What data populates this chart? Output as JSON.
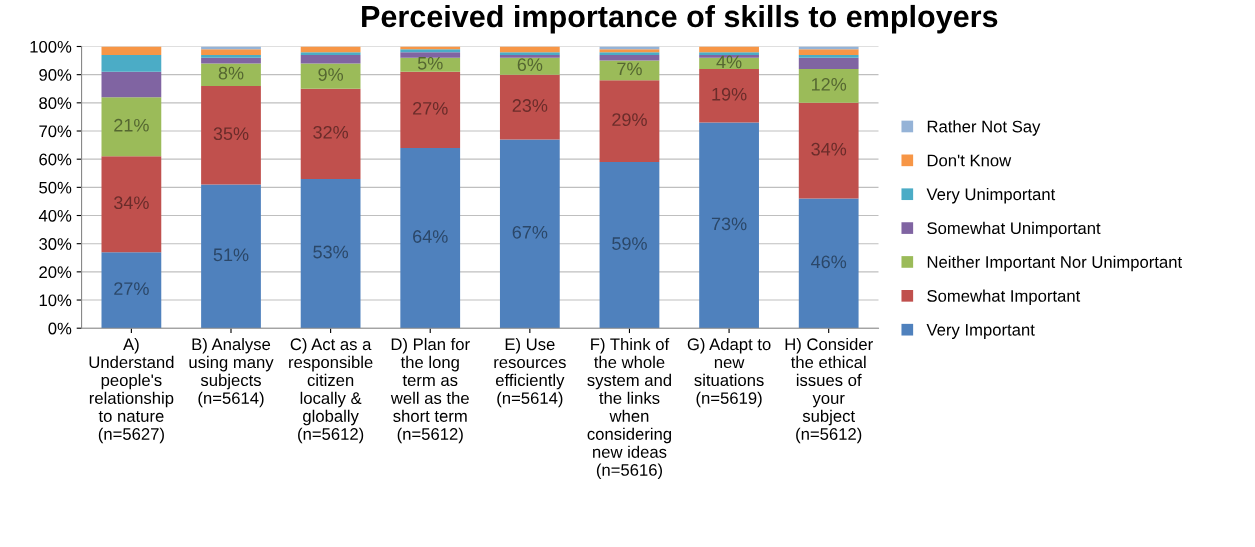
{
  "chart_data": {
    "type": "bar",
    "stacked": true,
    "title": "Perceived importance of skills to employers",
    "categories": [
      "A)\nUnderstand\npeople's\nrelationship\nto nature\n(n=5627)",
      "B) Analyse\nusing many\nsubjects\n(n=5614)",
      "C) Act as a\nresponsible\ncitizen\nlocally &\nglobally\n(n=5612)",
      "D) Plan for\nthe long\nterm as\nwell as the\nshort term\n(n=5612)",
      "E) Use\nresources\nefficiently\n(n=5614)",
      "F) Think of\nthe whole\nsystem and\nthe links\nwhen\nconsidering\nnew ideas\n(n=5616)",
      "G) Adapt to\nnew\nsituations\n(n=5619)",
      "H) Consider\nthe ethical\nissues of\nyour\nsubject\n(n=5612)"
    ],
    "series": [
      {
        "name": "Very Important",
        "color": "#4f81bd",
        "values": [
          27,
          51,
          53,
          64,
          67,
          59,
          73,
          46
        ],
        "value_labels": [
          "27%",
          "51%",
          "53%",
          "64%",
          "67%",
          "59%",
          "73%",
          "46%"
        ]
      },
      {
        "name": "Somewhat Important",
        "color": "#c0504d",
        "values": [
          34,
          35,
          32,
          27,
          23,
          29,
          19,
          34
        ],
        "value_labels": [
          "34%",
          "35%",
          "32%",
          "27%",
          "23%",
          "29%",
          "19%",
          "34%"
        ]
      },
      {
        "name": "Neither Important Nor Unimportant",
        "color": "#9bbb59",
        "values": [
          21,
          8,
          9,
          5,
          6,
          7,
          4,
          12
        ],
        "value_labels": [
          "21%",
          "8%",
          "9%",
          "5%",
          "6%",
          "7%",
          "4%",
          "12%"
        ]
      },
      {
        "name": "Somewhat Unimportant",
        "color": "#8064a2",
        "values": [
          9,
          2,
          3,
          2,
          1,
          2,
          1,
          4
        ]
      },
      {
        "name": "Very Unimportant",
        "color": "#4bacc6",
        "values": [
          6,
          1,
          1,
          1,
          1,
          1,
          1,
          1
        ]
      },
      {
        "name": "Don't Know",
        "color": "#f79646",
        "values": [
          3,
          2,
          2,
          1,
          2,
          1,
          2,
          2
        ]
      },
      {
        "name": "Rather Not Say",
        "color": "#95b3d7",
        "values": [
          0,
          1,
          0,
          0,
          0,
          1,
          0,
          1
        ]
      }
    ],
    "ylim": [
      0,
      100
    ],
    "yticks": [
      {
        "value": 0,
        "label": "0%"
      },
      {
        "value": 10,
        "label": "10%"
      },
      {
        "value": 20,
        "label": "20%"
      },
      {
        "value": 30,
        "label": "30%"
      },
      {
        "value": 40,
        "label": "40%"
      },
      {
        "value": 50,
        "label": "50%"
      },
      {
        "value": 60,
        "label": "60%"
      },
      {
        "value": 70,
        "label": "70%"
      },
      {
        "value": 80,
        "label": "80%"
      },
      {
        "value": 90,
        "label": "90%"
      },
      {
        "value": 100,
        "label": "100%"
      }
    ],
    "grid": "y",
    "legend": "right"
  }
}
